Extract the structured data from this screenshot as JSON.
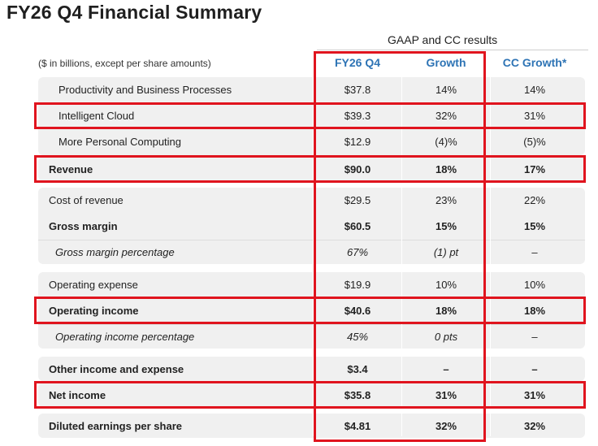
{
  "title": "FY26 Q4 Financial Summary",
  "header": {
    "group_label": "GAAP and CC results",
    "units_note": "($ in billions, except per share amounts)",
    "columns": [
      "FY26 Q4",
      "Growth",
      "CC Growth*"
    ]
  },
  "colors": {
    "column_header": "#2e74b5",
    "highlight": "#e0141e",
    "band": "#f0f0f0"
  },
  "rows": [
    {
      "label": "Productivity and Business Processes",
      "value": "$37.8",
      "growth": "14%",
      "cc_growth": "14%"
    },
    {
      "label": "Intelligent Cloud",
      "value": "$39.3",
      "growth": "32%",
      "cc_growth": "31%"
    },
    {
      "label": "More Personal Computing",
      "value": "$12.9",
      "growth": "(4)%",
      "cc_growth": "(5)%"
    },
    {
      "label": "Revenue",
      "value": "$90.0",
      "growth": "18%",
      "cc_growth": "17%"
    },
    {
      "label": "Cost of revenue",
      "value": "$29.5",
      "growth": "23%",
      "cc_growth": "22%"
    },
    {
      "label": "Gross margin",
      "value": "$60.5",
      "growth": "15%",
      "cc_growth": "15%"
    },
    {
      "label": "Gross margin percentage",
      "value": "67%",
      "growth": "(1) pt",
      "cc_growth": "–"
    },
    {
      "label": "Operating expense",
      "value": "$19.9",
      "growth": "10%",
      "cc_growth": "10%"
    },
    {
      "label": "Operating income",
      "value": "$40.6",
      "growth": "18%",
      "cc_growth": "18%"
    },
    {
      "label": "Operating income percentage",
      "value": "45%",
      "growth": "0 pts",
      "cc_growth": "–"
    },
    {
      "label": "Other income and expense",
      "value": "$3.4",
      "growth": "–",
      "cc_growth": "–"
    },
    {
      "label": "Net income",
      "value": "$35.8",
      "growth": "31%",
      "cc_growth": "31%"
    },
    {
      "label": "Diluted earnings per share",
      "value": "$4.81",
      "growth": "32%",
      "cc_growth": "32%"
    }
  ]
}
